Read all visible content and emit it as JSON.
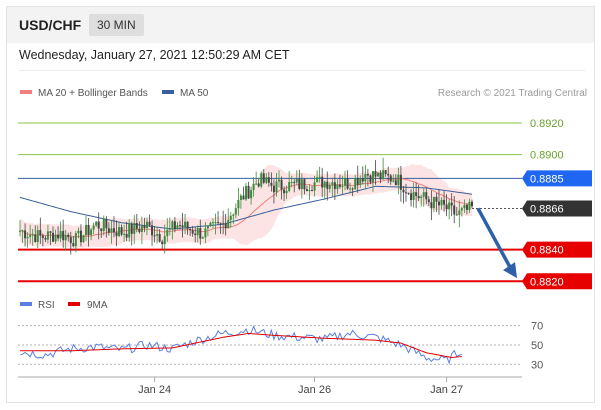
{
  "header": {
    "symbol": "USD/CHF",
    "timeframe": "30 MIN",
    "datetime": "Wednesday, January 27, 2021 12:50:29 AM CET"
  },
  "legend": {
    "bollinger": "MA 20 + Bollinger Bands",
    "ma50": "MA 50",
    "credit": "Research © 2021 Trading Central",
    "rsi": "RSI",
    "ma9": "9MA"
  },
  "colors": {
    "up": "#3c8c3c",
    "down": "#444444",
    "ma20": "#f08080",
    "band": "#fde4e4",
    "ma50": "#3a5f9e",
    "support": "#e60000",
    "resistance": "#8cc63f",
    "pivot": "#1f66f2",
    "current": "#333333",
    "arrow": "#2e5fa8",
    "rsi": "#5b7fe0",
    "rsi_ma": "#e00000"
  },
  "chart_data": [
    {
      "type": "candlestick",
      "title": "USD/CHF 30 MIN",
      "ylim": [
        0.8817,
        0.8932
      ],
      "x_ticks": [
        "Jan 24",
        "Jan 26",
        "Jan 27"
      ],
      "levels": [
        {
          "value": 0.892,
          "label": "0.8920",
          "kind": "resistance"
        },
        {
          "value": 0.89,
          "label": "0.8900",
          "kind": "resistance"
        },
        {
          "value": 0.8885,
          "label": "0.8885",
          "kind": "pivot"
        },
        {
          "value": 0.8866,
          "label": "0.8866",
          "kind": "current"
        },
        {
          "value": 0.884,
          "label": "0.8840",
          "kind": "support"
        },
        {
          "value": 0.882,
          "label": "0.8820",
          "kind": "support"
        }
      ],
      "close_anchors": [
        [
          0,
          0.8852
        ],
        [
          8,
          0.8848
        ],
        [
          16,
          0.885
        ],
        [
          22,
          0.8846
        ],
        [
          30,
          0.8856
        ],
        [
          40,
          0.8851
        ],
        [
          50,
          0.8855
        ],
        [
          56,
          0.8848
        ],
        [
          62,
          0.8856
        ],
        [
          72,
          0.885
        ],
        [
          80,
          0.8856
        ],
        [
          88,
          0.8874
        ],
        [
          94,
          0.8884
        ],
        [
          100,
          0.888
        ],
        [
          110,
          0.8881
        ],
        [
          120,
          0.8883
        ],
        [
          130,
          0.8882
        ],
        [
          136,
          0.8888
        ],
        [
          142,
          0.8886
        ],
        [
          148,
          0.8885
        ],
        [
          154,
          0.8876
        ],
        [
          162,
          0.887
        ],
        [
          168,
          0.8866
        ],
        [
          172,
          0.8862
        ],
        [
          178,
          0.8866
        ]
      ],
      "ma50_anchors": [
        [
          0,
          0.8873
        ],
        [
          20,
          0.8864
        ],
        [
          40,
          0.8857
        ],
        [
          60,
          0.8853
        ],
        [
          80,
          0.8856
        ],
        [
          100,
          0.8865
        ],
        [
          120,
          0.8872
        ],
        [
          140,
          0.888
        ],
        [
          160,
          0.8879
        ],
        [
          178,
          0.8875
        ]
      ]
    },
    {
      "type": "line",
      "title": "RSI",
      "ylim": [
        22,
        78
      ],
      "y_ticks": [
        70,
        50,
        30
      ],
      "series": [
        {
          "name": "RSI",
          "anchors": [
            [
              0,
              43
            ],
            [
              10,
              40
            ],
            [
              20,
              46
            ],
            [
              30,
              48
            ],
            [
              40,
              45
            ],
            [
              50,
              50
            ],
            [
              60,
              46
            ],
            [
              70,
              55
            ],
            [
              80,
              62
            ],
            [
              90,
              66
            ],
            [
              100,
              60
            ],
            [
              110,
              58
            ],
            [
              120,
              56
            ],
            [
              130,
              62
            ],
            [
              140,
              58
            ],
            [
              150,
              50
            ],
            [
              160,
              37
            ],
            [
              168,
              34
            ],
            [
              174,
              45
            ]
          ]
        },
        {
          "name": "9MA",
          "anchors": [
            [
              0,
              44
            ],
            [
              20,
              44
            ],
            [
              40,
              46
            ],
            [
              60,
              47
            ],
            [
              80,
              58
            ],
            [
              90,
              62
            ],
            [
              100,
              60
            ],
            [
              120,
              57
            ],
            [
              140,
              55
            ],
            [
              150,
              52
            ],
            [
              160,
              42
            ],
            [
              170,
              37
            ],
            [
              174,
              38
            ]
          ]
        }
      ]
    }
  ]
}
